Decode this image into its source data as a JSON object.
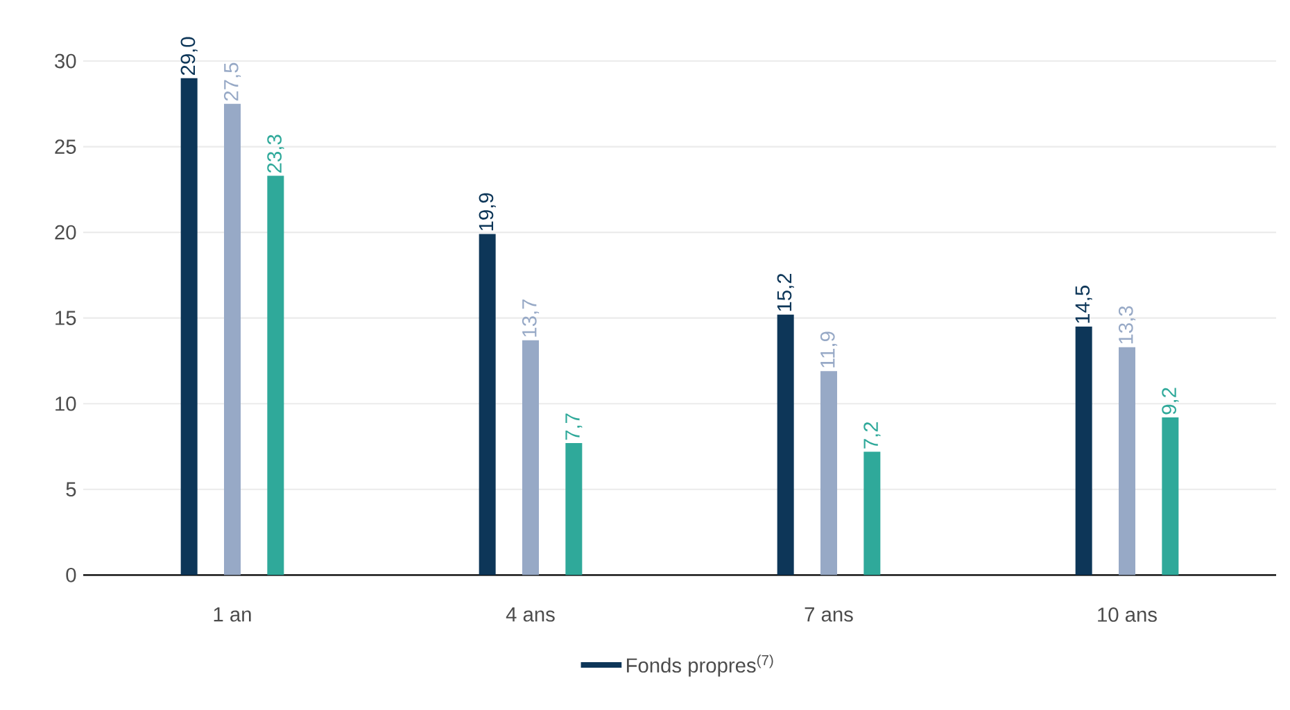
{
  "chart_data": {
    "type": "bar",
    "categories": [
      "1 an",
      "4 ans",
      "7 ans",
      "10 ans"
    ],
    "series": [
      {
        "name": "Fonds propres$^{(7)}$",
        "color": "#0d3658",
        "values": [
          29.0,
          19.9,
          15.2,
          14.5
        ],
        "value_labels": [
          "29,0",
          "19,9",
          "15,2",
          "14,5"
        ]
      },
      {
        "color": "#97a9c6",
        "values": [
          27.5,
          13.7,
          11.9,
          13.3
        ],
        "value_labels": [
          "27,5",
          "13,7",
          "11,9",
          "13,3"
        ]
      },
      {
        "color": "#2fa99a",
        "values": [
          23.3,
          7.7,
          7.2,
          9.2
        ],
        "value_labels": [
          "23,3",
          "7,7",
          "7,2",
          "9,2"
        ]
      }
    ],
    "ylim": [
      0,
      30
    ],
    "yticks": [
      0,
      5,
      10,
      15,
      20,
      25,
      30
    ],
    "grid": "y",
    "legend": "bottom"
  }
}
